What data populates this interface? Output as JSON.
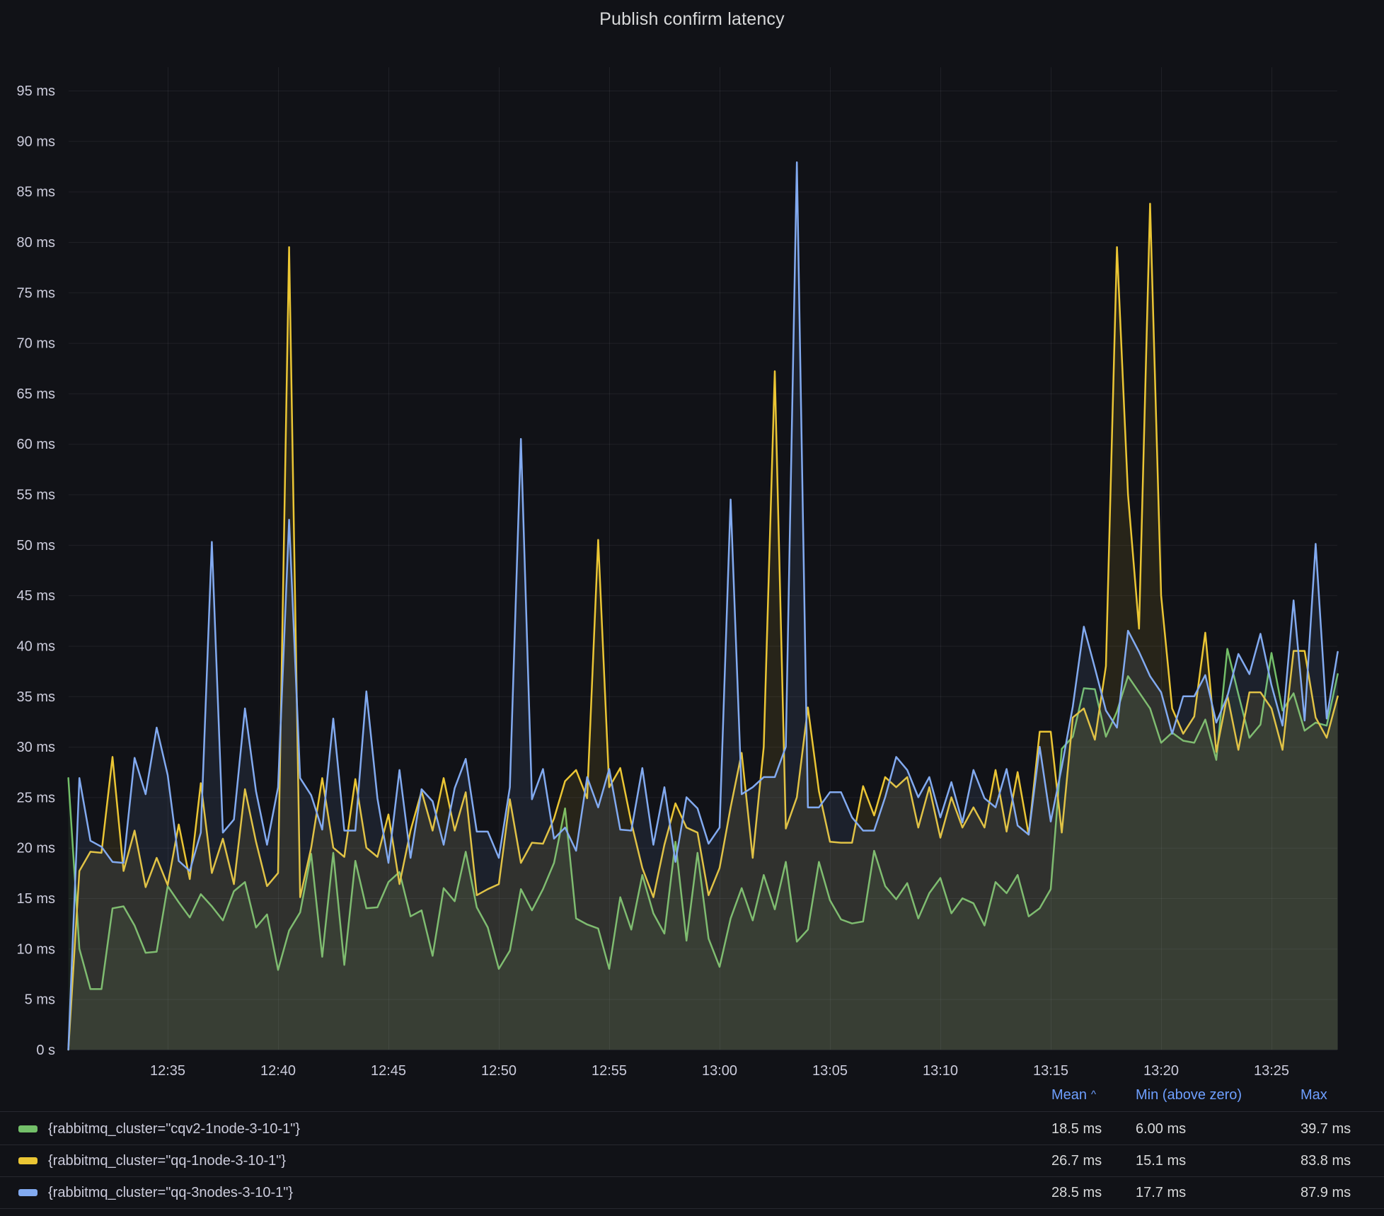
{
  "panel": {
    "title": "Publish confirm latency"
  },
  "colors": {
    "background": "#111217",
    "text": "#CCCCDC",
    "title_text": "#D8D9DA",
    "grid": "rgba(204,204,220,0.08)",
    "legend_header": "#6E9FFF",
    "separator": "rgba(204,204,220,0.12)",
    "green_series": "#73BF69",
    "yellow_series": "#EBC634",
    "blue_series": "#82AAF0"
  },
  "chart_data": {
    "type": "line",
    "title": "Publish confirm latency",
    "xlabel": "",
    "ylabel": "",
    "unit": "ms",
    "grid": true,
    "legend_position": "bottom-table",
    "ylim": [
      0,
      97.5
    ],
    "x_axis_origin": "12:30:00",
    "x_start": "12:30:30",
    "x_step_seconds": 30,
    "yticks": [
      {
        "label": "0 s",
        "value": 0
      },
      {
        "label": "5 ms",
        "value": 5
      },
      {
        "label": "10 ms",
        "value": 10
      },
      {
        "label": "15 ms",
        "value": 15
      },
      {
        "label": "20 ms",
        "value": 20
      },
      {
        "label": "25 ms",
        "value": 25
      },
      {
        "label": "30 ms",
        "value": 30
      },
      {
        "label": "35 ms",
        "value": 35
      },
      {
        "label": "40 ms",
        "value": 40
      },
      {
        "label": "45 ms",
        "value": 45
      },
      {
        "label": "50 ms",
        "value": 50
      },
      {
        "label": "55 ms",
        "value": 55
      },
      {
        "label": "60 ms",
        "value": 60
      },
      {
        "label": "65 ms",
        "value": 65
      },
      {
        "label": "70 ms",
        "value": 70
      },
      {
        "label": "75 ms",
        "value": 75
      },
      {
        "label": "80 ms",
        "value": 80
      },
      {
        "label": "85 ms",
        "value": 85
      },
      {
        "label": "90 ms",
        "value": 90
      },
      {
        "label": "95 ms",
        "value": 95
      }
    ],
    "xticks": [
      {
        "label": "12:35",
        "minutes_after_origin": 5
      },
      {
        "label": "12:40",
        "minutes_after_origin": 10
      },
      {
        "label": "12:45",
        "minutes_after_origin": 15
      },
      {
        "label": "12:50",
        "minutes_after_origin": 20
      },
      {
        "label": "12:55",
        "minutes_after_origin": 25
      },
      {
        "label": "13:00",
        "minutes_after_origin": 30
      },
      {
        "label": "13:05",
        "minutes_after_origin": 35
      },
      {
        "label": "13:10",
        "minutes_after_origin": 40
      },
      {
        "label": "13:15",
        "minutes_after_origin": 45
      },
      {
        "label": "13:20",
        "minutes_after_origin": 50
      },
      {
        "label": "13:25",
        "minutes_after_origin": 55
      }
    ],
    "series": [
      {
        "name": "{rabbitmq_cluster=\"cqv2-1node-3-10-1\"}",
        "color": "#73BF69",
        "fill_opacity": 0.1,
        "line_width": 2.5,
        "values": [
          26.9,
          10.0,
          6.0,
          6.0,
          14.0,
          14.2,
          12.3,
          9.6,
          9.7,
          16.2,
          14.6,
          13.1,
          15.4,
          14.2,
          12.8,
          15.7,
          16.6,
          12.1,
          13.4,
          7.9,
          11.8,
          13.6,
          19.4,
          9.2,
          19.5,
          8.4,
          18.7,
          14.0,
          14.1,
          16.6,
          17.6,
          13.2,
          13.8,
          9.3,
          16.0,
          14.7,
          19.6,
          14.1,
          12.1,
          8.0,
          9.8,
          15.9,
          13.8,
          15.9,
          18.5,
          23.9,
          13.0,
          12.4,
          12.0,
          8.0,
          15.1,
          11.9,
          17.3,
          13.5,
          11.5,
          20.6,
          10.8,
          19.5,
          11.0,
          8.2,
          13.0,
          16.0,
          12.8,
          17.3,
          13.9,
          18.6,
          10.7,
          11.9,
          18.6,
          14.8,
          12.9,
          12.5,
          12.7,
          19.7,
          16.2,
          14.9,
          16.5,
          13.0,
          15.5,
          17.0,
          13.5,
          15.0,
          14.5,
          12.3,
          16.6,
          15.5,
          17.3,
          13.2,
          14.0,
          15.9,
          29.8,
          31.0,
          35.8,
          35.7,
          31.0,
          33.5,
          37.0,
          35.4,
          33.8,
          30.4,
          31.4,
          30.6,
          30.4,
          32.7,
          28.7,
          39.7,
          35.2,
          30.9,
          32.2,
          39.3,
          33.6,
          35.3,
          31.6,
          32.4,
          32.1,
          37.2
        ]
      },
      {
        "name": "{rabbitmq_cluster=\"qq-1node-3-10-1\"}",
        "color": "#EBC634",
        "fill_opacity": 0.1,
        "line_width": 2.5,
        "values": [
          0.0,
          17.7,
          19.6,
          19.5,
          29.0,
          17.7,
          21.7,
          16.1,
          19.0,
          16.3,
          22.3,
          16.9,
          26.4,
          17.5,
          20.9,
          16.4,
          25.8,
          20.6,
          16.2,
          17.5,
          79.5,
          15.1,
          20.0,
          26.9,
          20.0,
          19.1,
          26.8,
          20.0,
          19.1,
          23.3,
          16.4,
          21.7,
          25.6,
          21.7,
          26.9,
          21.7,
          25.5,
          15.3,
          15.9,
          16.4,
          24.8,
          18.5,
          20.5,
          20.4,
          22.9,
          26.6,
          27.7,
          24.9,
          50.5,
          26.0,
          27.9,
          22.5,
          18.0,
          15.1,
          20.3,
          24.4,
          22.0,
          21.5,
          15.3,
          18.0,
          24.0,
          29.4,
          19.0,
          30.0,
          67.2,
          21.9,
          25.0,
          33.9,
          25.6,
          20.6,
          20.5,
          20.5,
          26.1,
          23.2,
          27.0,
          26.0,
          27.0,
          22.0,
          26.0,
          21.0,
          25.0,
          22.0,
          24.0,
          22.0,
          27.7,
          21.6,
          27.5,
          21.3,
          31.5,
          31.5,
          21.5,
          32.9,
          33.8,
          30.7,
          38.0,
          79.5,
          55.0,
          41.7,
          83.8,
          45.0,
          33.8,
          31.3,
          33.0,
          41.3,
          29.5,
          35.1,
          29.7,
          35.4,
          35.4,
          33.8,
          29.7,
          39.5,
          39.5,
          32.9,
          30.9,
          35.0
        ]
      },
      {
        "name": "{rabbitmq_cluster=\"qq-3nodes-3-10-1\"}",
        "color": "#82AAF0",
        "fill_opacity": 0.1,
        "line_width": 2.5,
        "values": [
          0.0,
          26.9,
          20.7,
          20.1,
          18.6,
          18.5,
          28.9,
          25.3,
          31.9,
          27.2,
          18.7,
          17.7,
          21.5,
          50.3,
          21.5,
          22.8,
          33.8,
          25.6,
          20.3,
          26.0,
          52.5,
          26.9,
          25.2,
          21.8,
          32.8,
          21.7,
          21.7,
          35.5,
          24.9,
          18.5,
          27.7,
          19.0,
          25.8,
          24.6,
          20.3,
          25.9,
          28.8,
          21.6,
          21.6,
          19.0,
          26.0,
          60.5,
          24.8,
          27.8,
          20.9,
          22.0,
          19.7,
          27.0,
          24.0,
          27.8,
          21.8,
          21.7,
          27.9,
          20.3,
          26.0,
          18.6,
          25.0,
          23.9,
          20.4,
          22.0,
          54.5,
          25.3,
          26.0,
          27.0,
          27.0,
          30.0,
          87.9,
          24.0,
          24.0,
          25.5,
          25.5,
          23.0,
          21.7,
          21.7,
          25.0,
          29.0,
          27.7,
          25.0,
          27.0,
          23.0,
          26.5,
          22.5,
          27.7,
          24.9,
          24.0,
          27.8,
          22.2,
          21.3,
          30.0,
          22.6,
          28.0,
          34.0,
          41.9,
          37.8,
          33.6,
          31.9,
          41.5,
          39.4,
          37.0,
          35.4,
          31.3,
          35.0,
          35.0,
          37.1,
          32.4,
          35.0,
          39.2,
          37.2,
          41.2,
          36.1,
          32.1,
          44.5,
          32.6,
          50.1,
          32.8,
          39.4
        ]
      }
    ]
  },
  "legend": {
    "headers": {
      "mean": "Mean",
      "mean_sort_indicator": "^",
      "min": "Min (above zero)",
      "max": "Max"
    },
    "rows": [
      {
        "name": "{rabbitmq_cluster=\"cqv2-1node-3-10-1\"}",
        "color": "#73BF69",
        "mean": "18.5 ms",
        "min": "6.00 ms",
        "max": "39.7 ms"
      },
      {
        "name": "{rabbitmq_cluster=\"qq-1node-3-10-1\"}",
        "color": "#EBC634",
        "mean": "26.7 ms",
        "min": "15.1 ms",
        "max": "83.8 ms"
      },
      {
        "name": "{rabbitmq_cluster=\"qq-3nodes-3-10-1\"}",
        "color": "#82AAF0",
        "mean": "28.5 ms",
        "min": "17.7 ms",
        "max": "87.9 ms"
      }
    ]
  }
}
